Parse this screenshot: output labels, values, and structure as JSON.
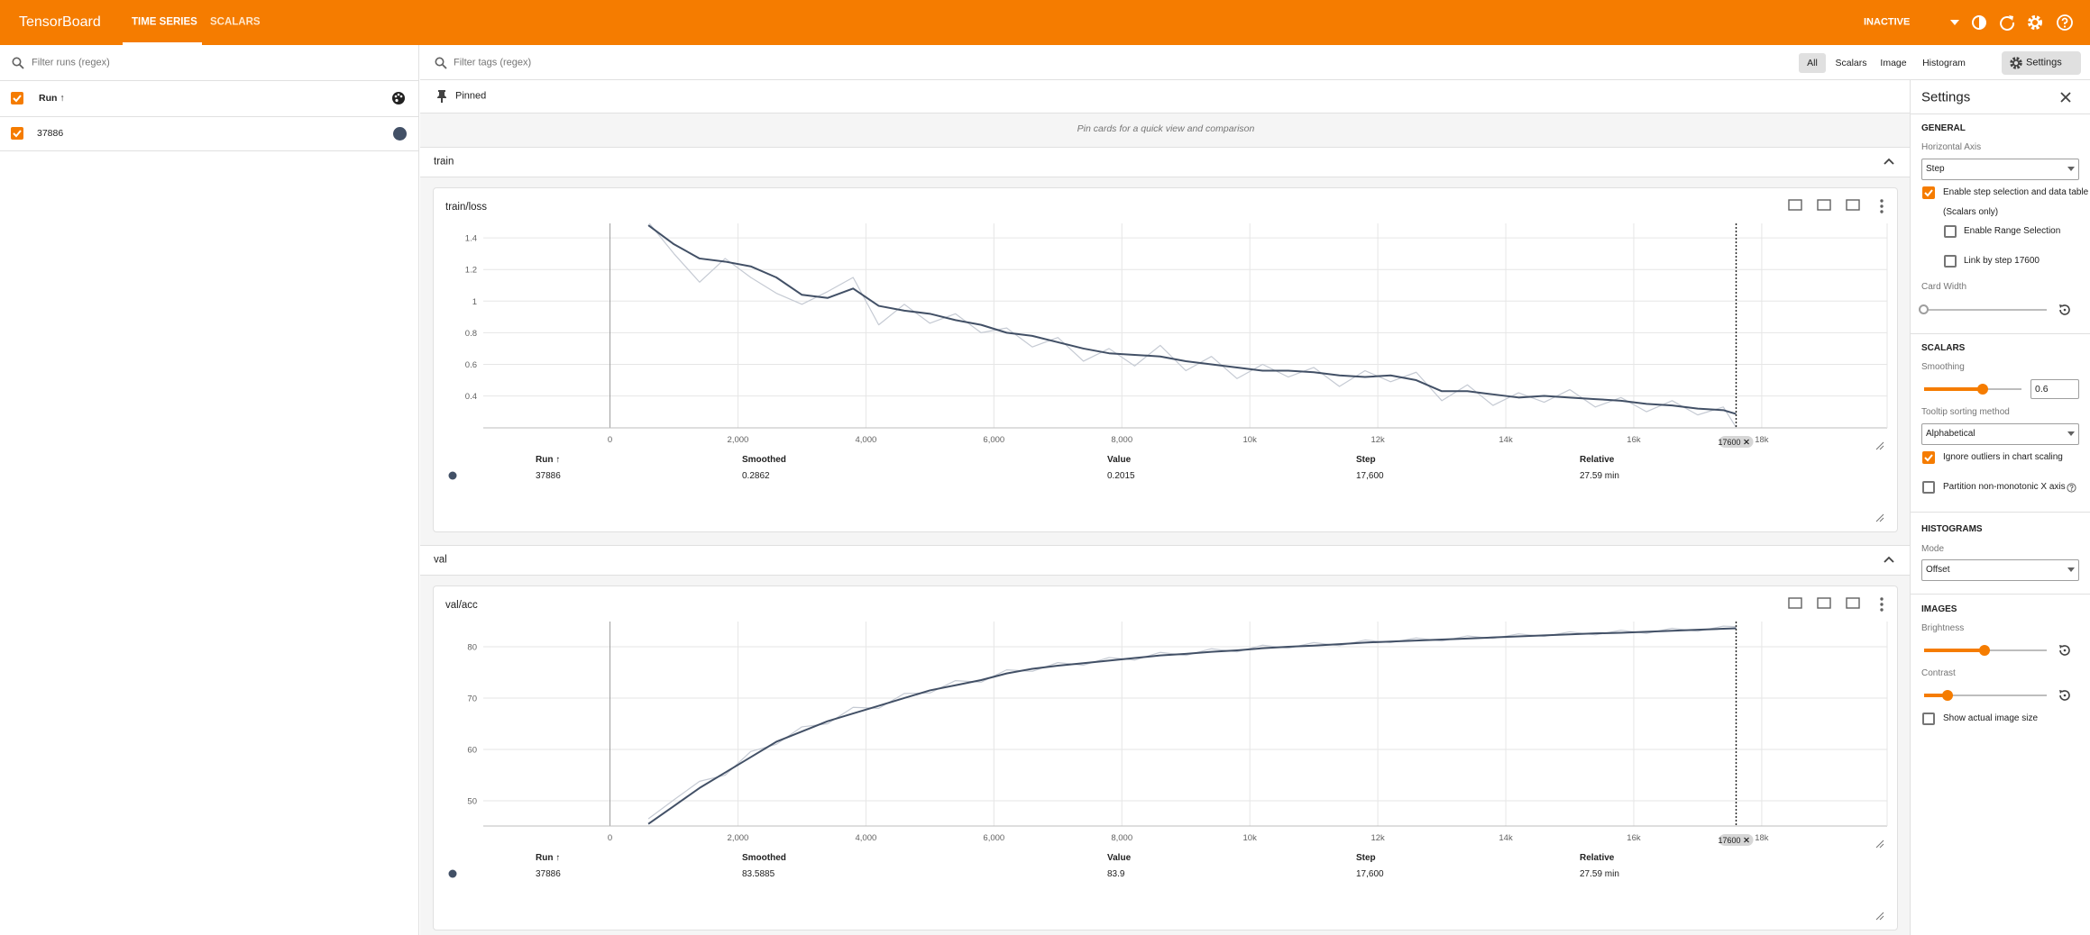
{
  "header": {
    "brand": "TensorBoard",
    "tabs": [
      "TIME SERIES",
      "SCALARS"
    ],
    "status": "INACTIVE"
  },
  "runs": {
    "filter_placeholder": "Filter runs (regex)",
    "column": "Run ↑"
  },
  "toolbar": {
    "filter_placeholder": "Filter tags (regex)",
    "types": [
      "All",
      "Scalars",
      "Image",
      "Histogram"
    ],
    "settings_button": "Settings"
  },
  "pinned": {
    "title": "Pinned",
    "hint": "Pin cards for a quick view and comparison"
  },
  "groups": [
    "train",
    "val"
  ],
  "settings": {
    "title": "Settings",
    "general": {
      "heading": "GENERAL",
      "horizontal_axis_label": "Horizontal Axis",
      "horizontal_axis": "Step",
      "step_selection": "Enable step selection and data table",
      "scalars_only": "(Scalars only)",
      "range_selection": "Enable Range Selection",
      "link_by_step": "Link by step 17600",
      "card_width": "Card Width"
    },
    "scalars": {
      "heading": "SCALARS",
      "smoothing_label": "Smoothing",
      "smoothing": 0.6,
      "tooltip_label": "Tooltip sorting method",
      "tooltip": "Alphabetical",
      "ignore_outliers": "Ignore outliers in chart scaling",
      "partition": "Partition non-monotonic X axis"
    },
    "histograms": {
      "heading": "HISTOGRAMS",
      "mode_label": "Mode",
      "mode": "Offset"
    },
    "images": {
      "heading": "IMAGES",
      "brightness": "Brightness",
      "contrast": "Contrast",
      "actual_size": "Show actual image size"
    }
  },
  "chart_data": [
    {
      "type": "line",
      "title": "train/loss",
      "x": [
        600,
        1000,
        1400,
        1800,
        2200,
        2600,
        3000,
        3400,
        3800,
        4200,
        4600,
        5000,
        5400,
        5800,
        6200,
        6600,
        7000,
        7400,
        7800,
        8200,
        8600,
        9000,
        9400,
        9800,
        10200,
        10600,
        11000,
        11400,
        11800,
        12200,
        12600,
        13000,
        13400,
        13800,
        14200,
        14600,
        15000,
        15400,
        15800,
        16200,
        16600,
        17000,
        17400,
        17600
      ],
      "series": [
        {
          "name": "37886",
          "color": "#425066",
          "raw_color": "#c5cad3",
          "values": [
            1.48,
            1.36,
            1.27,
            1.25,
            1.22,
            1.15,
            1.04,
            1.02,
            1.08,
            0.97,
            0.94,
            0.92,
            0.88,
            0.85,
            0.8,
            0.78,
            0.74,
            0.7,
            0.67,
            0.66,
            0.65,
            0.62,
            0.6,
            0.58,
            0.56,
            0.56,
            0.55,
            0.53,
            0.52,
            0.53,
            0.5,
            0.43,
            0.43,
            0.41,
            0.39,
            0.4,
            0.39,
            0.38,
            0.37,
            0.35,
            0.34,
            0.32,
            0.31,
            0.2862
          ],
          "raw_values": [
            1.5,
            1.3,
            1.12,
            1.27,
            1.15,
            1.05,
            0.98,
            1.06,
            1.15,
            0.85,
            0.98,
            0.86,
            0.92,
            0.8,
            0.83,
            0.71,
            0.77,
            0.62,
            0.7,
            0.59,
            0.72,
            0.56,
            0.65,
            0.51,
            0.6,
            0.52,
            0.58,
            0.46,
            0.56,
            0.49,
            0.55,
            0.37,
            0.47,
            0.34,
            0.42,
            0.36,
            0.44,
            0.33,
            0.39,
            0.3,
            0.37,
            0.28,
            0.33,
            0.2015
          ]
        }
      ],
      "xlim": [
        -1980,
        19960
      ],
      "xticks": [
        0,
        {
          "value": 2000,
          "label": "2,000"
        },
        {
          "value": 4000,
          "label": "4,000"
        },
        {
          "value": 6000,
          "label": "6,000"
        },
        {
          "value": 8000,
          "label": "8,000"
        },
        {
          "value": 10000,
          "label": "10k"
        },
        {
          "value": 12000,
          "label": "12k"
        },
        {
          "value": 14000,
          "label": "14k"
        },
        {
          "value": 16000,
          "label": "16k"
        },
        {
          "value": 18000,
          "label": "18k"
        }
      ],
      "ylim": [
        0.198,
        1.492
      ],
      "yticks": [
        0.4,
        0.6,
        0.8,
        1,
        1.2,
        1.4
      ],
      "grid": true,
      "step_selection": 17600,
      "table": {
        "columns": [
          "Run ↑",
          "Smoothed",
          "Value",
          "Step",
          "Relative"
        ],
        "smoothed": "0.2862",
        "value": "0.2015",
        "step": "17,600",
        "relative": "27.59 min"
      }
    },
    {
      "type": "line",
      "title": "val/acc",
      "x": [
        600,
        1000,
        1400,
        1800,
        2200,
        2600,
        3000,
        3400,
        3800,
        4200,
        4600,
        5000,
        5400,
        5800,
        6200,
        6600,
        7000,
        7400,
        7800,
        8200,
        8600,
        9000,
        9400,
        9800,
        10200,
        10600,
        11000,
        11400,
        11800,
        12200,
        12600,
        13000,
        13400,
        13800,
        14200,
        14600,
        15000,
        15400,
        15800,
        16200,
        16600,
        17000,
        17400,
        17600
      ],
      "series": [
        {
          "name": "37886",
          "color": "#425066",
          "raw_color": "#c5cad3",
          "values": [
            45.5,
            49,
            52.5,
            55.5,
            58.5,
            61.5,
            63.5,
            65.5,
            67,
            68.5,
            70,
            71.5,
            72.5,
            73.5,
            74.8,
            75.7,
            76.3,
            76.8,
            77.3,
            77.8,
            78.3,
            78.6,
            79,
            79.3,
            79.7,
            80,
            80.2,
            80.5,
            80.8,
            81,
            81.2,
            81.4,
            81.6,
            81.8,
            82,
            82.2,
            82.4,
            82.6,
            82.7,
            82.9,
            83.1,
            83.3,
            83.5,
            83.5885
          ],
          "raw_values": [
            46.5,
            50.2,
            53.8,
            55.0,
            59.6,
            61.0,
            64.4,
            65.0,
            68.2,
            68.0,
            70.9,
            71.0,
            73.4,
            73.1,
            75.5,
            75.2,
            76.9,
            76.4,
            77.9,
            77.4,
            78.9,
            78.3,
            79.6,
            79.0,
            80.3,
            79.7,
            80.8,
            80.2,
            81.3,
            80.8,
            81.7,
            81.1,
            82.1,
            81.6,
            82.5,
            82.0,
            82.9,
            82.3,
            83.2,
            82.6,
            83.6,
            83.0,
            84.0,
            83.9
          ]
        }
      ],
      "xlim": [
        -1980,
        19960
      ],
      "xticks": [
        0,
        {
          "value": 2000,
          "label": "2,000"
        },
        {
          "value": 4000,
          "label": "4,000"
        },
        {
          "value": 6000,
          "label": "6,000"
        },
        {
          "value": 8000,
          "label": "8,000"
        },
        {
          "value": 10000,
          "label": "10k"
        },
        {
          "value": 12000,
          "label": "12k"
        },
        {
          "value": 14000,
          "label": "14k"
        },
        {
          "value": 16000,
          "label": "16k"
        },
        {
          "value": 18000,
          "label": "18k"
        }
      ],
      "ylim": [
        45.1,
        84.9
      ],
      "yticks": [
        50,
        60,
        70,
        80
      ],
      "grid": true,
      "step_selection": 17600,
      "table": {
        "columns": [
          "Run ↑",
          "Smoothed",
          "Value",
          "Step",
          "Relative"
        ],
        "smoothed": "83.5885",
        "value": "83.9",
        "step": "17,600",
        "relative": "27.59 min"
      }
    }
  ]
}
